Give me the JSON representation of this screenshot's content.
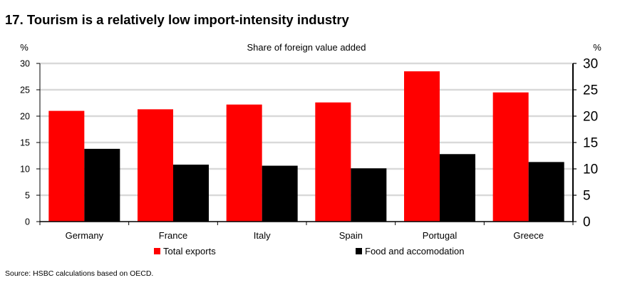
{
  "title": "17. Tourism is a relatively low import-intensity industry",
  "source": "Source: HSBC calculations based on OECD.",
  "colors": {
    "total_exports": "#ff0000",
    "food": "#000000",
    "grid": "#d9d9d9"
  },
  "chart_data": {
    "type": "bar",
    "title": "Share of foreign value added",
    "ylabel_left": "%",
    "ylabel_right": "%",
    "ylim": [
      0,
      30
    ],
    "yticks": [
      0,
      5,
      10,
      15,
      20,
      25,
      30
    ],
    "categories": [
      "Germany",
      "France",
      "Italy",
      "Spain",
      "Portugal",
      "Greece"
    ],
    "series": [
      {
        "name": "Total exports",
        "values": [
          21.0,
          21.3,
          22.2,
          22.6,
          28.5,
          24.5
        ]
      },
      {
        "name": "Food and accomodation",
        "values": [
          13.8,
          10.8,
          10.6,
          10.1,
          12.8,
          11.3
        ]
      }
    ],
    "grid": true,
    "legend": "bottom"
  }
}
